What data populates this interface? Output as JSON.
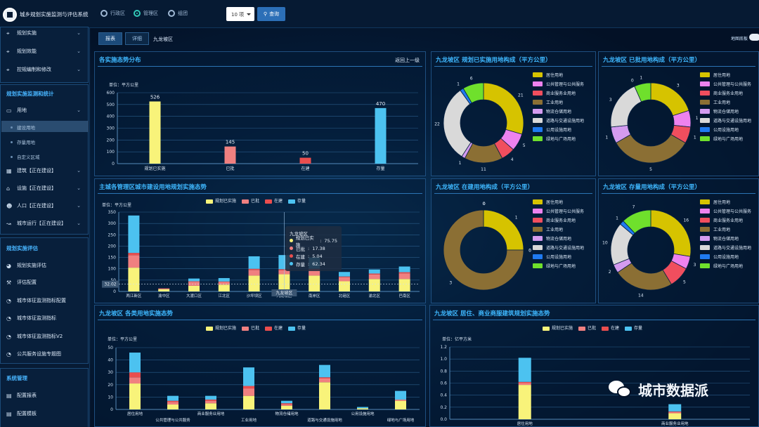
{
  "app": {
    "title": "城乡规划实施监测与评估系统"
  },
  "topbar": {
    "radios": [
      {
        "label": "行政区",
        "selected": false
      },
      {
        "label": "管理区",
        "selected": true
      },
      {
        "label": "组团",
        "selected": false
      }
    ],
    "select_value": "10 项",
    "query_label": "查询"
  },
  "sidebar": {
    "top_items": [
      {
        "label": "规划实施",
        "icon": "crop-icon"
      },
      {
        "label": "规划效能",
        "icon": "crop-icon"
      },
      {
        "label": "控规编制和修改",
        "icon": "crop-icon"
      }
    ],
    "section1_title": "规划实施监测和统计",
    "section1_items": [
      {
        "label": "用地",
        "icon": "laptop-icon"
      }
    ],
    "land_sub": [
      {
        "label": "建设用地",
        "selected": true
      },
      {
        "label": "存量用地",
        "selected": false
      },
      {
        "label": "自定义区域",
        "selected": false
      }
    ],
    "section1_more": [
      {
        "label": "建筑【正在建设】",
        "icon": "building-icon"
      },
      {
        "label": "设施【正在建设】",
        "icon": "home-icon"
      },
      {
        "label": "人口【正在建设】",
        "icon": "users-icon"
      },
      {
        "label": "城市运行【正在建设】",
        "icon": "line-chart-icon"
      }
    ],
    "section2_title": "规划实施评估",
    "section2_items": [
      {
        "label": "规划实施评估",
        "icon": "dashboard-icon"
      },
      {
        "label": "评估配置",
        "icon": "wrench-icon"
      },
      {
        "label": "城市体征监测指标配置",
        "icon": "pie-icon"
      },
      {
        "label": "城市体征监测指标",
        "icon": "pie-icon"
      },
      {
        "label": "城市体征监测指标V2",
        "icon": "pie-icon"
      },
      {
        "label": "公共服务设施专题图",
        "icon": "pie-icon"
      }
    ],
    "section3_title": "系统管理",
    "section3_items": [
      {
        "label": "配置报表",
        "icon": "report-icon"
      },
      {
        "label": "配置模板",
        "icon": "report-icon"
      }
    ]
  },
  "tabs": [
    {
      "label": "报表",
      "active": true
    },
    {
      "label": "详细",
      "active": false
    }
  ],
  "breadcrumb": "九龙坡区",
  "map_toggle_label": "地图底板",
  "colors": {
    "yellow": "#f8f37a",
    "pink": "#f08080",
    "red": "#ea4e4e",
    "blue": "#4cc2f0",
    "accent": "#3fb8ff"
  },
  "panel1": {
    "title": "各实施态势分布",
    "back_label": "返回上一级"
  },
  "panel2": {
    "title": "主城各管理区城市建设用地规划实施态势",
    "tooltip": {
      "title": "九龙坡区",
      "rows": [
        {
          "label": "规划已实施",
          "value": "75.75"
        },
        {
          "label": "已批",
          "value": "17.38"
        },
        {
          "label": "在建",
          "value": "5.04"
        },
        {
          "label": "存量",
          "value": "62.34"
        }
      ]
    },
    "avg_label": "32.02",
    "hover_label": "九龙坡区"
  },
  "panel3": {
    "title": "九龙坡区 各类用地实施态势"
  },
  "panel4": {
    "title": "九龙坡区 居住、商业商服建筑规划实施态势"
  },
  "donut_titles": [
    "九龙坡区 规划已实施用地构成（平方公里）",
    "九龙坡区 已批用地构成（平方公里）",
    "九龙坡区 在建用地构成（平方公里）",
    "九龙坡区 存量用地构成（平方公里）"
  ],
  "donut_legend": [
    "居住用地",
    "公共管理与公共服务",
    "商业服务业用地",
    "工业用地",
    "物流仓储用地",
    "道路与交通设施用地",
    "公用设施用地",
    "绿地与广场用地"
  ],
  "donut_colors": [
    "#d6c300",
    "#ee82ee",
    "#f04e5e",
    "#8b6f34",
    "#d49bf0",
    "#d9d9d9",
    "#1f7af0",
    "#6fe02c"
  ],
  "chart_data": [
    {
      "type": "bar",
      "title": "各实施态势分布",
      "ylabel": "单位：平方公里",
      "categories": [
        "规划已实施",
        "已批",
        "在建",
        "存量"
      ],
      "values": [
        526,
        145,
        50,
        470
      ],
      "ylim": [
        0,
        600
      ],
      "grid": true
    },
    {
      "type": "bar",
      "title": "主城各管理区城市建设用地规划实施态势",
      "ylabel": "单位：平方公里",
      "ylim": [
        0,
        350
      ],
      "grid": true,
      "legend": "top-center",
      "categories": [
        "两江新区",
        "渝中区",
        "大渡口区",
        "江北区",
        "沙坪坝区",
        "九龙坡区",
        "南岸区",
        "北碚区",
        "渝北区",
        "巴南区"
      ],
      "series": [
        {
          "name": "规划已实施",
          "values": [
            105,
            10,
            25,
            30,
            70,
            75.75,
            70,
            45,
            55,
            55
          ]
        },
        {
          "name": "已批",
          "values": [
            55,
            3,
            18,
            12,
            25,
            17.38,
            25,
            18,
            20,
            25
          ]
        },
        {
          "name": "在建",
          "values": [
            10,
            1,
            2,
            2,
            5,
            5.04,
            5,
            3,
            4,
            5
          ]
        },
        {
          "name": "存量",
          "values": [
            165,
            0,
            12,
            15,
            55,
            62.34,
            50,
            20,
            18,
            25
          ]
        }
      ]
    },
    {
      "type": "bar",
      "title": "九龙坡区 各类用地实施态势",
      "ylabel": "单位：平方公里",
      "ylim": [
        0,
        50
      ],
      "grid": true,
      "legend": "top-center",
      "categories": [
        "居住用地",
        "公共管理与公共服务",
        "商业服务业用地",
        "工业用地",
        "物流仓储用地",
        "道路与交通设施用地",
        "公用设施用地",
        "绿地与广场用地"
      ],
      "series": [
        {
          "name": "规划已实施",
          "values": [
            21,
            4,
            5,
            11,
            3,
            22,
            1,
            7
          ]
        },
        {
          "name": "已批",
          "values": [
            5,
            2,
            2,
            6,
            1,
            3,
            0,
            1
          ]
        },
        {
          "name": "在建",
          "values": [
            4,
            1,
            1,
            2,
            1,
            1,
            0,
            0
          ]
        },
        {
          "name": "存量",
          "values": [
            16,
            4,
            3,
            15,
            2,
            10,
            1,
            7
          ]
        }
      ]
    },
    {
      "type": "bar",
      "title": "九龙坡区 居住、商业商服建筑规划实施态势",
      "ylabel": "单位：亿平方米",
      "ylim": [
        0,
        1.2
      ],
      "grid": true,
      "legend": "top-right",
      "categories": [
        "居住用地",
        "商业服务业用地"
      ],
      "series": [
        {
          "name": "规划已实施",
          "values": [
            0.57,
            0.1
          ]
        },
        {
          "name": "已批",
          "values": [
            0.03,
            0.02
          ]
        },
        {
          "name": "在建",
          "values": [
            0.02,
            0.01
          ]
        },
        {
          "name": "存量",
          "values": [
            0.4,
            0.12
          ]
        }
      ]
    },
    {
      "type": "pie",
      "title": "九龙坡区 规划已实施用地构成（平方公里）",
      "categories": [
        "居住用地",
        "公共管理与公共服务",
        "商业服务业用地",
        "工业用地",
        "物流仓储用地",
        "道路与交通设施用地",
        "公用设施用地",
        "绿地与广场用地"
      ],
      "values": [
        21,
        5,
        4,
        11,
        1,
        22,
        1,
        6
      ]
    },
    {
      "type": "pie",
      "title": "九龙坡区 已批用地构成（平方公里）",
      "categories": [
        "居住用地",
        "公共管理与公共服务",
        "商业服务业用地",
        "工业用地",
        "物流仓储用地",
        "道路与交通设施用地",
        "公用设施用地",
        "绿地与广场用地"
      ],
      "values": [
        3,
        1,
        1,
        5,
        1,
        3,
        0,
        1
      ]
    },
    {
      "type": "pie",
      "title": "九龙坡区 在建用地构成（平方公里）",
      "categories": [
        "居住用地",
        "公共管理与公共服务",
        "商业服务业用地",
        "工业用地",
        "物流仓储用地",
        "道路与交通设施用地",
        "公用设施用地",
        "绿地与广场用地"
      ],
      "values": [
        1,
        0,
        0,
        3,
        0,
        0,
        0,
        0
      ]
    },
    {
      "type": "pie",
      "title": "九龙坡区 存量用地构成（平方公里）",
      "categories": [
        "居住用地",
        "公共管理与公共服务",
        "商业服务业用地",
        "工业用地",
        "物流仓储用地",
        "道路与交通设施用地",
        "公用设施用地",
        "绿地与广场用地"
      ],
      "values": [
        16,
        3,
        5,
        14,
        2,
        10,
        1,
        7
      ]
    }
  ],
  "watermark": "城市数据派"
}
